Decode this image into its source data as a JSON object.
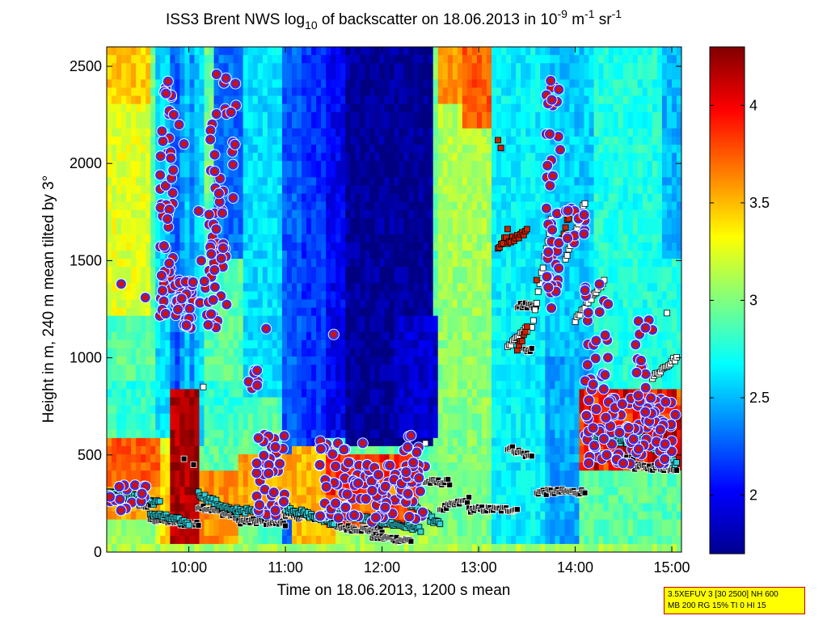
{
  "chart_data": {
    "type": "heatmap",
    "title_parts": {
      "prefix": "ISS3 Brent NWS log",
      "sub": "10",
      "mid": " of backscatter on 18.06.2013 in 10",
      "sup1": "-9",
      "unit1": " m",
      "sup2": "-1",
      "unit2": " sr",
      "sup3": "-1"
    },
    "xlabel": "Time on 18.06.2013, 1200 s mean",
    "ylabel": "Height in m, 240 m mean tilted by 3°",
    "x_ticks": [
      "10:00",
      "11:00",
      "12:00",
      "13:00",
      "14:00",
      "15:00"
    ],
    "x_tick_hours": [
      10,
      11,
      12,
      13,
      14,
      15
    ],
    "xlim_hours": [
      9.15,
      15.1
    ],
    "y_ticks": [
      0,
      500,
      1000,
      1500,
      2000,
      2500
    ],
    "ylim": [
      0,
      2600
    ],
    "colorbar": {
      "ticks": [
        2,
        2.5,
        3,
        3.5,
        4
      ],
      "tick_labels": [
        "2",
        "2.5",
        "3",
        "3.5",
        "4"
      ],
      "range": [
        1.7,
        4.3
      ],
      "colormap": "jet"
    },
    "info_lines": [
      "3.5XEFUV 3 [30 2500] NH 600",
      "MB 200 RG 15% TI 0 HI 15"
    ],
    "marker_colors": {
      "cloud_circle_fill": "#cc1111",
      "cloud_circle_edge": "#3030ff",
      "layer_square_cyan": "#30d0d8",
      "layer_square_black": "#000000",
      "layer_square_white": "#ffffff",
      "layer_square_red": "#cc2200"
    },
    "circle_clusters": [
      {
        "x": [
          9.7,
          9.85
        ],
        "y": [
          1200,
          2450
        ],
        "n": 55
      },
      {
        "x": [
          9.85,
          10.05
        ],
        "y": [
          1150,
          1400
        ],
        "n": 30
      },
      {
        "x": [
          10.1,
          10.4
        ],
        "y": [
          1150,
          1800
        ],
        "n": 45
      },
      {
        "x": [
          10.2,
          10.5
        ],
        "y": [
          1800,
          2480
        ],
        "n": 25
      },
      {
        "x": [
          10.6,
          10.75
        ],
        "y": [
          820,
          950
        ],
        "n": 8
      },
      {
        "x": [
          9.15,
          9.6
        ],
        "y": [
          200,
          350
        ],
        "n": 18
      },
      {
        "x": [
          10.7,
          11.0
        ],
        "y": [
          180,
          620
        ],
        "n": 40
      },
      {
        "x": [
          11.35,
          11.7
        ],
        "y": [
          170,
          600
        ],
        "n": 40
      },
      {
        "x": [
          11.7,
          12.45
        ],
        "y": [
          150,
          450
        ],
        "n": 85
      },
      {
        "x": [
          12.2,
          12.4
        ],
        "y": [
          300,
          600
        ],
        "n": 15
      },
      {
        "x": [
          13.7,
          13.85
        ],
        "y": [
          1200,
          2450
        ],
        "n": 45
      },
      {
        "x": [
          13.9,
          14.1
        ],
        "y": [
          1550,
          1800
        ],
        "n": 18
      },
      {
        "x": [
          14.1,
          14.35
        ],
        "y": [
          800,
          1400
        ],
        "n": 25
      },
      {
        "x": [
          14.1,
          15.05
        ],
        "y": [
          450,
          800
        ],
        "n": 110
      },
      {
        "x": [
          14.6,
          14.8
        ],
        "y": [
          700,
          1200
        ],
        "n": 20
      }
    ],
    "single_circles": [
      {
        "x": 9.3,
        "y": 1380
      },
      {
        "x": 9.55,
        "y": 1310
      },
      {
        "x": 9.9,
        "y": 2200
      },
      {
        "x": 9.95,
        "y": 2100
      },
      {
        "x": 10.8,
        "y": 1150
      },
      {
        "x": 11.5,
        "y": 1120
      },
      {
        "x": 11.8,
        "y": 560
      },
      {
        "x": 12.3,
        "y": 600
      }
    ],
    "square_segments": [
      {
        "x": [
          9.15,
          9.6
        ],
        "y": [
          300,
          230
        ],
        "color": "black"
      },
      {
        "x": [
          9.6,
          10.1
        ],
        "y": [
          170,
          140
        ],
        "color": "black"
      },
      {
        "x": [
          10.1,
          10.5
        ],
        "y": [
          240,
          180
        ],
        "color": "black"
      },
      {
        "x": [
          10.5,
          11.0
        ],
        "y": [
          160,
          150
        ],
        "color": "black"
      },
      {
        "x": [
          11.0,
          11.5
        ],
        "y": [
          190,
          170
        ],
        "color": "black"
      },
      {
        "x": [
          11.5,
          12.0
        ],
        "y": [
          130,
          110
        ],
        "color": "black"
      },
      {
        "x": [
          11.9,
          12.3
        ],
        "y": [
          80,
          60
        ],
        "color": "black"
      },
      {
        "x": [
          12.45,
          12.7
        ],
        "y": [
          360,
          360
        ],
        "color": "black"
      },
      {
        "x": [
          12.6,
          12.9
        ],
        "y": [
          220,
          270
        ],
        "color": "black"
      },
      {
        "x": [
          12.9,
          13.4
        ],
        "y": [
          220,
          220
        ],
        "color": "black"
      },
      {
        "x": [
          13.3,
          13.55
        ],
        "y": [
          540,
          490
        ],
        "color": "black"
      },
      {
        "x": [
          13.6,
          14.1
        ],
        "y": [
          310,
          310
        ],
        "color": "black"
      },
      {
        "x": [
          14.2,
          14.6
        ],
        "y": [
          500,
          480
        ],
        "color": "black"
      },
      {
        "x": [
          14.6,
          15.05
        ],
        "y": [
          440,
          430
        ],
        "color": "black"
      },
      {
        "x": [
          13.4,
          13.6
        ],
        "y": [
          1270,
          1270
        ],
        "color": "black"
      },
      {
        "x": [
          13.45,
          13.55
        ],
        "y": [
          1040,
          1040
        ],
        "color": "black"
      },
      {
        "x": [
          9.15,
          9.7
        ],
        "y": [
          320,
          250
        ],
        "color": "cyan"
      },
      {
        "x": [
          9.6,
          10.0
        ],
        "y": [
          200,
          150
        ],
        "color": "cyan"
      },
      {
        "x": [
          10.1,
          10.5
        ],
        "y": [
          300,
          200
        ],
        "color": "cyan"
      },
      {
        "x": [
          10.5,
          10.9
        ],
        "y": [
          220,
          190
        ],
        "color": "cyan"
      },
      {
        "x": [
          11.0,
          11.5
        ],
        "y": [
          230,
          150
        ],
        "color": "cyan"
      },
      {
        "x": [
          11.5,
          12.4
        ],
        "y": [
          200,
          120
        ],
        "color": "cyan"
      },
      {
        "x": [
          12.3,
          12.6
        ],
        "y": [
          240,
          140
        ],
        "color": "cyan"
      },
      {
        "x": [
          14.1,
          14.6
        ],
        "y": [
          600,
          560
        ],
        "color": "cyan"
      },
      {
        "x": [
          14.6,
          15.05
        ],
        "y": [
          620,
          450
        ],
        "color": "cyan"
      },
      {
        "x": [
          13.9,
          14.1
        ],
        "y": [
          1500,
          1800
        ],
        "color": "white"
      },
      {
        "x": [
          13.55,
          13.75
        ],
        "y": [
          1150,
          1700
        ],
        "color": "white"
      },
      {
        "x": [
          13.3,
          13.5
        ],
        "y": [
          1050,
          1150
        ],
        "color": "white"
      },
      {
        "x": [
          14.0,
          14.3
        ],
        "y": [
          1200,
          1400
        ],
        "color": "white"
      },
      {
        "x": [
          14.8,
          15.05
        ],
        "y": [
          900,
          1000
        ],
        "color": "white"
      },
      {
        "x": [
          13.2,
          13.3
        ],
        "y": [
          1550,
          1650
        ],
        "color": "red"
      },
      {
        "x": [
          13.3,
          13.5
        ],
        "y": [
          1600,
          1650
        ],
        "color": "red"
      },
      {
        "x": [
          13.4,
          13.5
        ],
        "y": [
          1050,
          1150
        ],
        "color": "red"
      },
      {
        "x": [
          13.85,
          13.95
        ],
        "y": [
          1600,
          1750
        ],
        "color": "red"
      }
    ],
    "single_squares": [
      {
        "x": 13.2,
        "y": 2120,
        "color": "red"
      },
      {
        "x": 13.23,
        "y": 2080,
        "color": "red"
      },
      {
        "x": 13.6,
        "y": 1400,
        "color": "red"
      },
      {
        "x": 14.95,
        "y": 1230,
        "color": "white"
      },
      {
        "x": 12.45,
        "y": 560,
        "color": "white"
      },
      {
        "x": 9.95,
        "y": 480,
        "color": "black"
      },
      {
        "x": 10.05,
        "y": 450,
        "color": "black"
      },
      {
        "x": 10.15,
        "y": 850,
        "color": "white"
      }
    ]
  }
}
